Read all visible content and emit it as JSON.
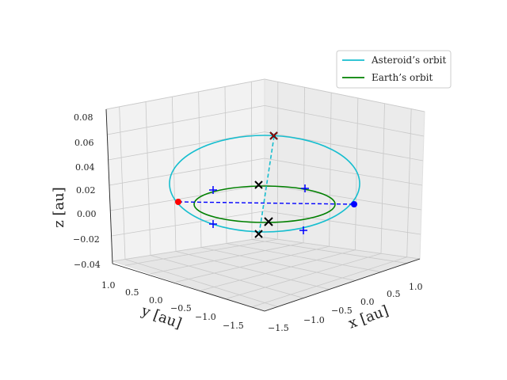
{
  "chart_data": {
    "type": "line3d",
    "xlabel": "x [au]",
    "ylabel": "y [au]",
    "zlabel": "z [au]",
    "x_ticks": [
      "1.0",
      "0.5",
      "0.0",
      "−0.5",
      "−1.0",
      "−1.5"
    ],
    "y_ticks": [
      "1.0",
      "0.5",
      "0.0",
      "−0.5",
      "−1.0",
      "−1.5"
    ],
    "z_ticks": [
      "0.08",
      "0.06",
      "0.04",
      "0.02",
      "0.00",
      "−0.02",
      "−0.04"
    ],
    "zlim": [
      -0.04,
      0.08
    ],
    "grid": true,
    "legend_position": "top-right",
    "series": [
      {
        "name": "Asteroid’s orbit",
        "color": "#17becf"
      },
      {
        "name": "Earth’s orbit",
        "color": "#008000"
      }
    ],
    "markers": [
      {
        "kind": "node-ascending",
        "color": "#ff0000"
      },
      {
        "kind": "node-descending",
        "color": "#0000ff"
      },
      {
        "kind": "cross",
        "color": "#000000"
      },
      {
        "kind": "plus",
        "color": "#0000ff"
      }
    ]
  }
}
